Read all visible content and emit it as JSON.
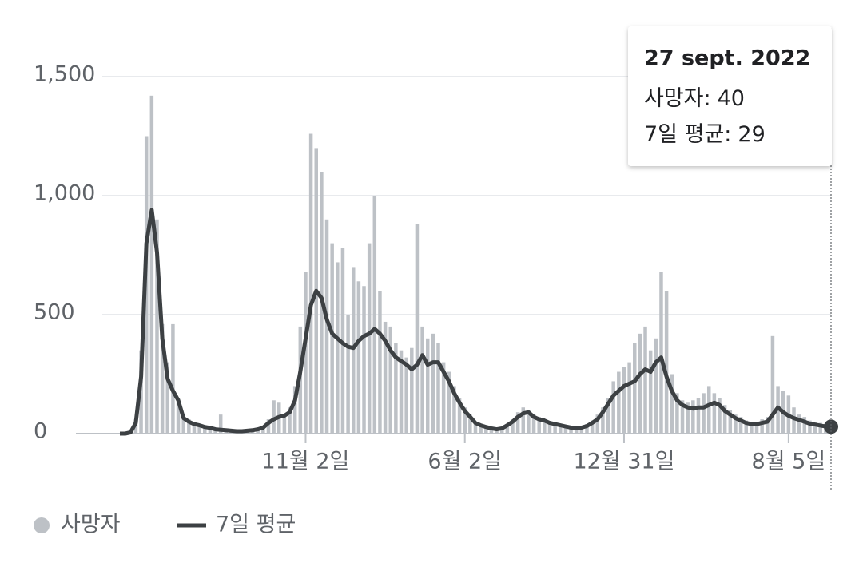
{
  "chart_data": {
    "type": "bar-line",
    "categories": [
      null,
      null,
      null,
      null,
      null,
      null,
      null,
      null,
      null,
      null,
      null,
      null,
      null,
      null,
      null,
      null,
      null,
      null,
      null,
      null,
      null,
      null,
      null,
      null,
      null,
      null,
      null,
      null,
      null,
      null,
      null,
      null,
      null,
      null,
      null,
      "11월 2일",
      null,
      null,
      null,
      null,
      null,
      null,
      null,
      null,
      null,
      null,
      null,
      null,
      null,
      null,
      null,
      null,
      null,
      null,
      null,
      null,
      null,
      null,
      null,
      null,
      null,
      null,
      null,
      null,
      null,
      "6월 2일",
      null,
      null,
      null,
      null,
      null,
      null,
      null,
      null,
      null,
      null,
      null,
      null,
      null,
      null,
      null,
      null,
      null,
      null,
      null,
      null,
      null,
      null,
      null,
      null,
      null,
      null,
      null,
      null,
      null,
      "12월 31일",
      null,
      null,
      null,
      null,
      null,
      null,
      null,
      null,
      null,
      null,
      null,
      null,
      null,
      null,
      null,
      null,
      null,
      null,
      null,
      null,
      null,
      null,
      null,
      null,
      null,
      null,
      null,
      null,
      null,
      null,
      "8월 5일",
      null,
      null,
      null,
      null,
      null,
      null,
      null,
      null
    ],
    "series": [
      {
        "name": "사망자",
        "color": "#bdc1c6",
        "kind": "bar",
        "values": [
          0,
          0,
          10,
          60,
          350,
          1250,
          1420,
          900,
          460,
          300,
          460,
          150,
          70,
          60,
          45,
          40,
          30,
          25,
          20,
          80,
          15,
          12,
          10,
          12,
          14,
          16,
          20,
          30,
          60,
          140,
          130,
          80,
          110,
          200,
          450,
          680,
          1260,
          1200,
          1100,
          900,
          800,
          720,
          780,
          500,
          700,
          640,
          620,
          800,
          1000,
          600,
          470,
          450,
          380,
          350,
          320,
          360,
          880,
          450,
          400,
          420,
          380,
          300,
          260,
          200,
          150,
          110,
          80,
          50,
          40,
          30,
          25,
          20,
          25,
          40,
          60,
          90,
          110,
          100,
          80,
          70,
          60,
          50,
          45,
          40,
          32,
          28,
          25,
          30,
          40,
          55,
          80,
          110,
          150,
          220,
          260,
          280,
          300,
          380,
          420,
          450,
          350,
          400,
          680,
          600,
          250,
          170,
          140,
          130,
          140,
          150,
          170,
          200,
          170,
          150,
          120,
          100,
          80,
          70,
          55,
          50,
          50,
          60,
          70,
          410,
          200,
          180,
          160,
          110,
          80,
          70,
          55,
          50,
          45,
          40,
          40
        ]
      },
      {
        "name": "7일 평균",
        "color": "#3c4043",
        "kind": "line",
        "values": [
          0,
          0,
          5,
          45,
          240,
          800,
          940,
          760,
          400,
          230,
          180,
          140,
          65,
          50,
          40,
          35,
          28,
          24,
          18,
          16,
          14,
          12,
          10,
          10,
          12,
          14,
          18,
          25,
          45,
          60,
          70,
          75,
          90,
          140,
          260,
          400,
          540,
          600,
          570,
          480,
          420,
          400,
          380,
          365,
          360,
          390,
          410,
          420,
          440,
          420,
          390,
          350,
          320,
          305,
          290,
          270,
          290,
          330,
          290,
          300,
          300,
          260,
          220,
          170,
          130,
          95,
          70,
          45,
          35,
          28,
          22,
          18,
          22,
          35,
          50,
          70,
          85,
          90,
          70,
          60,
          55,
          45,
          40,
          35,
          30,
          25,
          22,
          25,
          32,
          45,
          60,
          90,
          125,
          160,
          180,
          200,
          210,
          220,
          250,
          270,
          260,
          300,
          320,
          240,
          180,
          140,
          120,
          110,
          105,
          110,
          110,
          120,
          130,
          120,
          95,
          80,
          65,
          55,
          45,
          40,
          40,
          45,
          50,
          80,
          110,
          90,
          75,
          65,
          58,
          50,
          42,
          38,
          34,
          30,
          29
        ]
      }
    ],
    "ylim": [
      0,
      1500
    ],
    "yticks": [
      0,
      500,
      {
        "value": 1000,
        "label": "1,000"
      },
      {
        "value": 1500,
        "label": "1,500"
      }
    ],
    "grid": true,
    "tooltip": {
      "title": "27 sept. 2022",
      "labels": [
        "사망자:",
        "7일 평균:"
      ]
    }
  }
}
